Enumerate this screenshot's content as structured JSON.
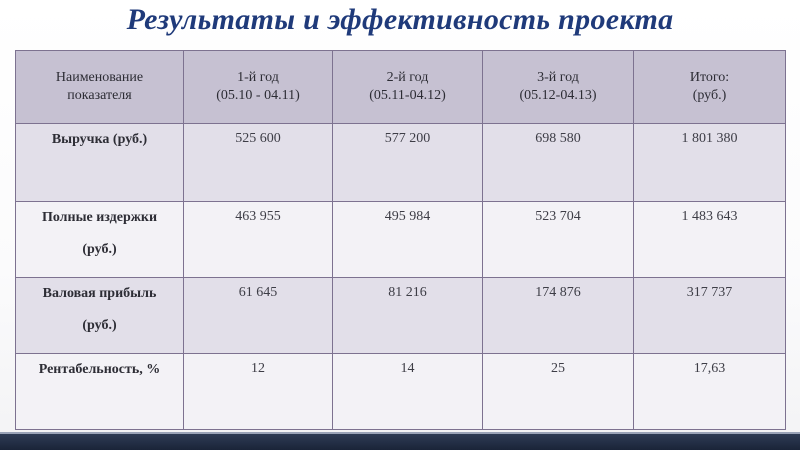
{
  "title": "Результаты и эффективность проекта",
  "table": {
    "headers": [
      {
        "line1": "Наименование",
        "line2": "показателя"
      },
      {
        "line1": "1-й год",
        "line2": "(05.10 - 04.11)"
      },
      {
        "line1": "2-й год",
        "line2": "(05.11-04.12)"
      },
      {
        "line1": "3-й год",
        "line2": "(05.12-04.13)"
      },
      {
        "line1": "Итого:",
        "line2": "(руб.)"
      }
    ],
    "rows": [
      {
        "label1": "Выручка (руб.)",
        "label2": "",
        "values": [
          "525 600",
          "577 200",
          "698 580",
          "1 801 380"
        ]
      },
      {
        "label1": "Полные издержки",
        "label2": "(руб.)",
        "values": [
          "463 955",
          "495 984",
          "523 704",
          "1 483 643"
        ]
      },
      {
        "label1": "Валовая прибыль",
        "label2": "(руб.)",
        "values": [
          "61 645",
          "81 216",
          "174 876",
          "317 737"
        ]
      },
      {
        "label1": "Рентабельность, %",
        "label2": "",
        "values": [
          "12",
          "14",
          "25",
          "17,63"
        ]
      }
    ]
  },
  "colors": {
    "title": "#1f3a7a",
    "header_bg": "#c6c1d2",
    "row_shaded_bg": "#e2dfe9",
    "row_plain_bg": "#f3f2f6",
    "border": "#7d7290",
    "bottom_bar": "#1f2a40"
  }
}
